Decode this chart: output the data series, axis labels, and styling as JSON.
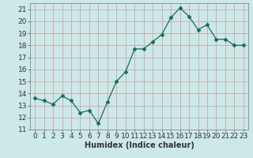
{
  "x": [
    0,
    1,
    2,
    3,
    4,
    5,
    6,
    7,
    8,
    9,
    10,
    11,
    12,
    13,
    14,
    15,
    16,
    17,
    18,
    19,
    20,
    21,
    22,
    23
  ],
  "y": [
    13.6,
    13.4,
    13.1,
    13.8,
    13.4,
    12.4,
    12.6,
    11.5,
    13.3,
    15.0,
    15.8,
    17.7,
    17.7,
    18.3,
    18.9,
    20.3,
    21.1,
    20.4,
    19.3,
    19.7,
    18.5,
    18.5,
    18.0,
    18.0
  ],
  "line_color": "#1a6b5a",
  "marker": "D",
  "marker_size": 2.5,
  "bg_color": "#cce8e8",
  "grid_color": "#b0d4d4",
  "xlabel": "Humidex (Indice chaleur)",
  "ylim": [
    11,
    21.5
  ],
  "yticks": [
    11,
    12,
    13,
    14,
    15,
    16,
    17,
    18,
    19,
    20,
    21
  ],
  "xticks": [
    0,
    1,
    2,
    3,
    4,
    5,
    6,
    7,
    8,
    9,
    10,
    11,
    12,
    13,
    14,
    15,
    16,
    17,
    18,
    19,
    20,
    21,
    22,
    23
  ],
  "xlabel_fontsize": 7,
  "tick_fontsize": 6.5
}
